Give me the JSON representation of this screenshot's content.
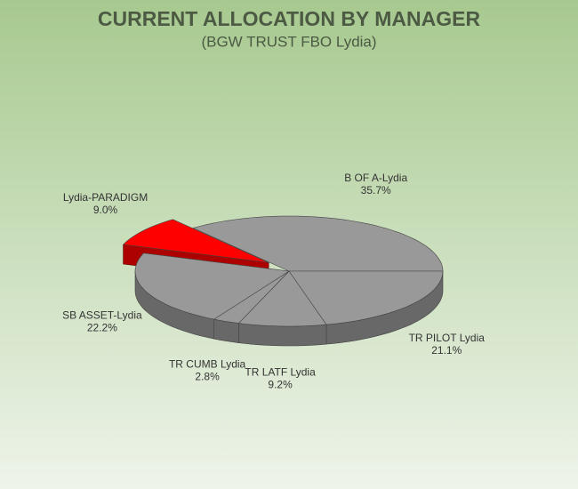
{
  "chart_data": {
    "type": "pie",
    "title": "CURRENT ALLOCATION BY MANAGER",
    "subtitle": "(BGW TRUST FBO Lydia)",
    "categories": [
      "B OF A-Lydia",
      "TR PILOT Lydia",
      "TR LATF Lydia",
      "TR CUMB Lydia",
      "SB ASSET-Lydia",
      "Lydia-PARADIGM"
    ],
    "values": [
      35.7,
      21.1,
      9.2,
      2.8,
      22.2,
      9.0
    ],
    "value_labels": [
      "35.7%",
      "21.1%",
      "9.2%",
      "2.8%",
      "22.2%",
      "9.0%"
    ],
    "colors": [
      "#999999",
      "#999999",
      "#999999",
      "#999999",
      "#999999",
      "#ff0000"
    ],
    "explode": [
      false,
      false,
      false,
      false,
      false,
      true
    ]
  }
}
